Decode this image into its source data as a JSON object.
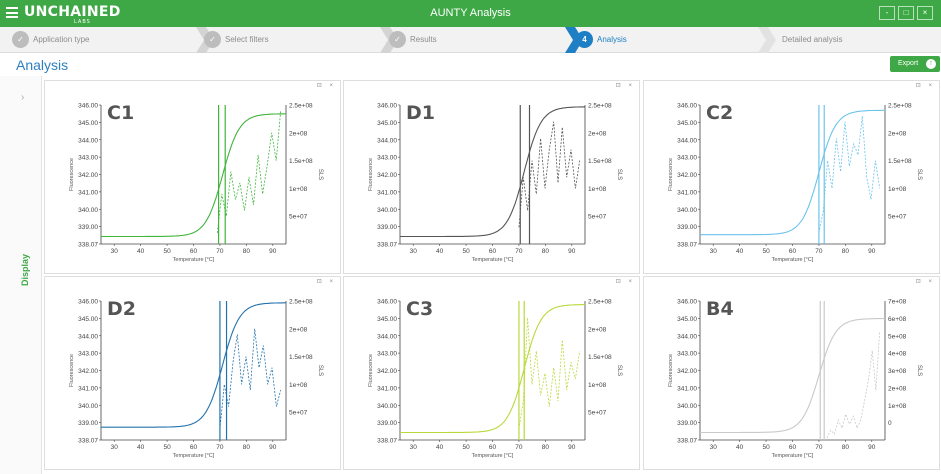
{
  "header": {
    "logo": "UNCHAINED",
    "logo_sub": "LABS",
    "title": "AUNTY Analysis",
    "window_buttons": [
      "-",
      "□",
      "×"
    ]
  },
  "steps": [
    {
      "label": "Application type",
      "number": "✓",
      "state": "done"
    },
    {
      "label": "Select filters",
      "number": "✓",
      "state": "done"
    },
    {
      "label": "Results",
      "number": "✓",
      "state": "done"
    },
    {
      "label": "Analysis",
      "number": "4",
      "state": "active"
    },
    {
      "label": "Detailed analysis",
      "number": "",
      "state": "pending"
    }
  ],
  "page": {
    "title": "Analysis",
    "export_label": "Export"
  },
  "sidebar": {
    "label": "Display",
    "arrow": "›"
  },
  "panel_icons": "⊡ ×",
  "chart_data": [
    {
      "type": "line",
      "sample": "C1",
      "color": "#3fb53a",
      "y2_max": 250000000.0,
      "xlabel": "Temperature [°C]",
      "ylabel": "Fluorescence",
      "y2label": "SLS",
      "y_ticks": [
        "346.00",
        "345.00",
        "344.00",
        "343.00",
        "342.00",
        "341.00",
        "340.00",
        "339.00",
        "338.07"
      ],
      "y2_ticks": [
        "2.5e+08",
        "2e+08",
        "1.5e+08",
        "1e+08",
        "5e+07"
      ],
      "x_ticks": [
        "30",
        "40",
        "50",
        "60",
        "70",
        "80",
        "90"
      ],
      "x_range": [
        25,
        95
      ],
      "y_range": [
        338.07,
        346
      ],
      "vlines": [
        69.5,
        72
      ],
      "fluorescence": {
        "min": 338.5,
        "max": 345.5,
        "tm": 71
      },
      "sls": {
        "start": 69,
        "values": [
          20000000.0,
          90000000.0,
          50000000.0,
          130000000.0,
          80000000.0,
          110000000.0,
          60000000.0,
          120000000.0,
          70000000.0,
          160000000.0,
          90000000.0,
          140000000.0,
          200000000.0,
          150000000.0,
          240000000.0
        ]
      }
    },
    {
      "type": "line",
      "sample": "D1",
      "color": "#555555",
      "y2_max": 250000000.0,
      "xlabel": "Temperature [°C]",
      "ylabel": "Fluorescence",
      "y2label": "SLS",
      "y_ticks": [
        "346.00",
        "345.00",
        "344.00",
        "343.00",
        "342.00",
        "341.00",
        "340.00",
        "339.00",
        "338.07"
      ],
      "y2_ticks": [
        "2.5e+08",
        "2e+08",
        "1.5e+08",
        "1e+08",
        "5e+07"
      ],
      "x_ticks": [
        "30",
        "40",
        "50",
        "60",
        "70",
        "80",
        "90"
      ],
      "x_range": [
        25,
        95
      ],
      "y_range": [
        338.07,
        346
      ],
      "vlines": [
        70.5,
        74
      ],
      "fluorescence": {
        "min": 338.5,
        "max": 345.9,
        "tm": 72
      },
      "sls": {
        "start": 70,
        "values": [
          30000000.0,
          120000000.0,
          60000000.0,
          150000000.0,
          90000000.0,
          190000000.0,
          100000000.0,
          170000000.0,
          220000000.0,
          110000000.0,
          210000000.0,
          120000000.0,
          170000000.0,
          100000000.0,
          150000000.0
        ]
      }
    },
    {
      "type": "line",
      "sample": "C2",
      "color": "#6cc3ec",
      "y2_max": 250000000.0,
      "xlabel": "Temperature [°C]",
      "ylabel": "Fluorescence",
      "y2label": "SLS",
      "y_ticks": [
        "346.00",
        "345.00",
        "344.00",
        "343.00",
        "342.00",
        "341.00",
        "340.00",
        "339.00",
        "338.07"
      ],
      "y2_ticks": [
        "2.5e+08",
        "2e+08",
        "1.5e+08",
        "1e+08",
        "5e+07"
      ],
      "x_ticks": [
        "30",
        "40",
        "50",
        "60",
        "70",
        "80",
        "90"
      ],
      "x_range": [
        25,
        95
      ],
      "y_range": [
        338.07,
        346
      ],
      "vlines": [
        70,
        72
      ],
      "fluorescence": {
        "min": 338.6,
        "max": 345.7,
        "tm": 70
      },
      "sls": {
        "start": 70,
        "values": [
          20000000.0,
          60000000.0,
          150000000.0,
          100000000.0,
          190000000.0,
          130000000.0,
          220000000.0,
          140000000.0,
          180000000.0,
          160000000.0,
          230000000.0,
          120000000.0,
          80000000.0,
          150000000.0,
          100000000.0
        ]
      }
    },
    {
      "type": "line",
      "sample": "D2",
      "color": "#2372ac",
      "y2_max": 250000000.0,
      "xlabel": "Temperature [°C]",
      "ylabel": "Fluorescence",
      "y2label": "SLS",
      "y_ticks": [
        "346.00",
        "345.00",
        "344.00",
        "343.00",
        "342.00",
        "341.00",
        "340.00",
        "339.00",
        "338.07"
      ],
      "y2_ticks": [
        "2.5e+08",
        "2e+08",
        "1.5e+08",
        "1e+08",
        "5e+07"
      ],
      "x_ticks": [
        "30",
        "40",
        "50",
        "60",
        "70",
        "80",
        "90"
      ],
      "x_range": [
        25,
        95
      ],
      "y_range": [
        338.07,
        346
      ],
      "vlines": [
        70,
        72.5
      ],
      "fluorescence": {
        "min": 338.8,
        "max": 345.9,
        "tm": 71
      },
      "sls": {
        "start": 70,
        "values": [
          20000000.0,
          100000000.0,
          60000000.0,
          140000000.0,
          190000000.0,
          100000000.0,
          150000000.0,
          90000000.0,
          200000000.0,
          130000000.0,
          170000000.0,
          100000000.0,
          130000000.0,
          60000000.0,
          90000000.0
        ]
      }
    },
    {
      "type": "line",
      "sample": "C3",
      "color": "#b9d93a",
      "y2_max": 250000000.0,
      "xlabel": "Temperature [°C]",
      "ylabel": "Fluorescence",
      "y2label": "SLS",
      "y_ticks": [
        "346.00",
        "345.00",
        "344.00",
        "343.00",
        "342.00",
        "341.00",
        "340.00",
        "339.00",
        "338.07"
      ],
      "y2_ticks": [
        "2.5e+08",
        "2e+08",
        "1.5e+08",
        "1e+08",
        "5e+07"
      ],
      "x_ticks": [
        "30",
        "40",
        "50",
        "60",
        "70",
        "80",
        "90"
      ],
      "x_range": [
        25,
        95
      ],
      "y_range": [
        338.07,
        346
      ],
      "vlines": [
        70,
        72
      ],
      "fluorescence": {
        "min": 338.5,
        "max": 345.8,
        "tm": 72
      },
      "sls": {
        "start": 70,
        "values": [
          20000000.0,
          70000000.0,
          220000000.0,
          100000000.0,
          160000000.0,
          80000000.0,
          120000000.0,
          60000000.0,
          130000000.0,
          70000000.0,
          180000000.0,
          90000000.0,
          140000000.0,
          110000000.0,
          160000000.0
        ]
      }
    },
    {
      "type": "line",
      "sample": "B4",
      "color": "#c9c9c9",
      "y2_max": 700000000.0,
      "xlabel": "Temperature [°C]",
      "ylabel": "Fluorescence",
      "y2label": "SLS",
      "y_ticks": [
        "346.00",
        "345.00",
        "344.00",
        "343.00",
        "342.00",
        "341.00",
        "340.00",
        "339.00",
        "338.07"
      ],
      "y2_ticks": [
        "7e+08",
        "6e+08",
        "5e+08",
        "4e+08",
        "3e+08",
        "2e+08",
        "1e+08",
        "0"
      ],
      "x_ticks": [
        "30",
        "40",
        "50",
        "60",
        "70",
        "80",
        "90"
      ],
      "x_range": [
        25,
        95
      ],
      "y_range": [
        338.07,
        346
      ],
      "vlines": [
        70.5,
        72
      ],
      "fluorescence": {
        "min": 338.5,
        "max": 345.0,
        "tm": 70
      },
      "sls": {
        "start": 73,
        "values": [
          10000000.0,
          50000000.0,
          30000000.0,
          100000000.0,
          60000000.0,
          130000000.0,
          80000000.0,
          120000000.0,
          60000000.0,
          100000000.0,
          200000000.0,
          300000000.0,
          450000000.0,
          250000000.0,
          550000000.0
        ]
      }
    }
  ]
}
